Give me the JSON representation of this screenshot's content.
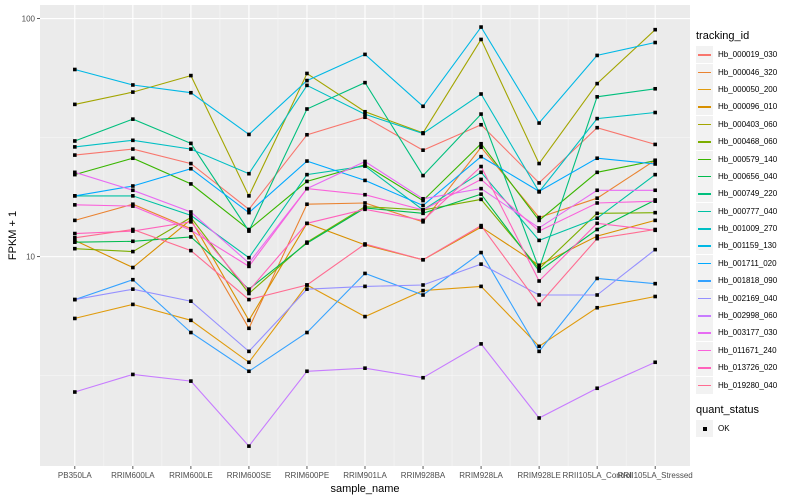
{
  "chart_data": {
    "type": "line",
    "title": "",
    "xlabel": "sample_name",
    "ylabel": "FPKM + 1",
    "yscale": "log10",
    "ylim": [
      1.32,
      114
    ],
    "yticks": [
      10,
      100
    ],
    "ytick_labels": [
      "10",
      "100"
    ],
    "grid": true,
    "legend_position": "right",
    "categories": [
      "PB350LA",
      "RRIM600LA",
      "RRIM600LE",
      "RRIM600SE",
      "RRIM600PE",
      "RRIM901LA",
      "RRIM928BA",
      "RRIM928LA",
      "RRIM928LE",
      "RRII105LA_Control",
      "RRII105LA_Stressed"
    ],
    "legend_title": "tracking_id",
    "shape_legend_title": "quant_status",
    "shape_legend_items": [
      "OK"
    ],
    "series": [
      {
        "name": "Hb_000019_030",
        "color": "#F8766D",
        "values": [
          26.7,
          28.3,
          24.6,
          15.8,
          32.5,
          38.5,
          28.0,
          35.8,
          20.4,
          34.8,
          29.6
        ]
      },
      {
        "name": "Hb_000046_320",
        "color": "#EA8331",
        "values": [
          14.2,
          16.6,
          13.1,
          5.0,
          16.6,
          16.8,
          14.0,
          28.8,
          14.6,
          17.6,
          25.4
        ]
      },
      {
        "name": "Hb_000050_200",
        "color": "#E09B0D",
        "values": [
          5.5,
          6.3,
          5.4,
          3.6,
          7.6,
          5.6,
          7.2,
          7.5,
          4.2,
          6.1,
          6.8
        ]
      },
      {
        "name": "Hb_000096_010",
        "color": "#D89000",
        "values": [
          11.7,
          9.0,
          14.3,
          5.4,
          13.8,
          11.2,
          9.7,
          13.3,
          9.2,
          12.2,
          14.2
        ]
      },
      {
        "name": "Hb_000403_060",
        "color": "#A3A500",
        "values": [
          43.6,
          49.1,
          57.6,
          18.0,
          58.8,
          40.6,
          33.1,
          81.7,
          24.6,
          53.3,
          89.8
        ]
      },
      {
        "name": "Hb_000468_060",
        "color": "#7CAE00",
        "values": [
          10.8,
          10.5,
          14.6,
          7.0,
          11.5,
          16.2,
          15.7,
          17.4,
          8.9,
          15.2,
          15.3
        ]
      },
      {
        "name": "Hb_000579_140",
        "color": "#39B600",
        "values": [
          22.1,
          25.9,
          20.2,
          13.0,
          20.7,
          24.3,
          17.2,
          29.8,
          14.2,
          22.6,
          25.3
        ]
      },
      {
        "name": "Hb_000656_040",
        "color": "#00BB4E",
        "values": [
          11.5,
          11.6,
          12.1,
          7.3,
          11.4,
          16.0,
          15.2,
          18.3,
          8.7,
          13.0,
          17.3
        ]
      },
      {
        "name": "Hb_000749_220",
        "color": "#00BF7D",
        "values": [
          30.6,
          37.8,
          29.9,
          12.8,
          41.7,
          53.8,
          21.9,
          39.7,
          8.9,
          46.9,
          50.7
        ]
      },
      {
        "name": "Hb_000777_040",
        "color": "#00C1A3",
        "values": [
          18.0,
          18.0,
          14.9,
          9.9,
          22.1,
          24.0,
          15.7,
          22.6,
          11.7,
          14.5,
          22.1
        ]
      },
      {
        "name": "Hb_001009_270",
        "color": "#00BFC4",
        "values": [
          28.9,
          30.8,
          28.3,
          22.3,
          52.4,
          39.6,
          32.9,
          48.2,
          18.7,
          38.0,
          40.3
        ]
      },
      {
        "name": "Hb_001159_130",
        "color": "#00B8E5",
        "values": [
          61.1,
          52.6,
          48.8,
          32.6,
          54.9,
          70.7,
          42.8,
          92.1,
          36.4,
          70.0,
          79.3
        ]
      },
      {
        "name": "Hb_001711_020",
        "color": "#00A9FF",
        "values": [
          18.0,
          19.8,
          23.4,
          15.3,
          25.2,
          20.9,
          16.4,
          26.3,
          18.8,
          25.9,
          24.5
        ]
      },
      {
        "name": "Hb_001818_090",
        "color": "#35A2FF",
        "values": [
          6.6,
          8.0,
          4.8,
          3.3,
          4.8,
          8.5,
          6.9,
          10.4,
          4.0,
          8.1,
          7.7
        ]
      },
      {
        "name": "Hb_002169_040",
        "color": "#9590FF",
        "values": [
          6.6,
          7.3,
          6.5,
          4.0,
          7.3,
          7.5,
          7.6,
          9.3,
          6.9,
          6.9,
          10.7
        ]
      },
      {
        "name": "Hb_002998_060",
        "color": "#C77CFF",
        "values": [
          2.7,
          3.2,
          3.0,
          1.6,
          3.3,
          3.4,
          3.1,
          4.3,
          2.1,
          2.8,
          3.6
        ]
      },
      {
        "name": "Hb_003177_030",
        "color": "#E76BF3",
        "values": [
          22.6,
          19.0,
          15.4,
          9.4,
          19.3,
          25.1,
          17.5,
          19.3,
          13.2,
          19.0,
          19.0
        ]
      },
      {
        "name": "Hb_011671_240",
        "color": "#FA62DB",
        "values": [
          16.5,
          16.3,
          12.9,
          9.1,
          19.3,
          18.2,
          15.7,
          21.1,
          12.8,
          16.8,
          17.1
        ]
      },
      {
        "name": "Hb_013726_020",
        "color": "#FF62BC",
        "values": [
          12.5,
          12.8,
          14.0,
          7.2,
          13.8,
          15.8,
          14.2,
          23.9,
          7.9,
          13.8,
          12.9
        ]
      },
      {
        "name": "Hb_019280_040",
        "color": "#FF6C91",
        "values": [
          12.0,
          13.0,
          10.6,
          6.6,
          7.6,
          11.3,
          9.7,
          13.5,
          6.3,
          11.9,
          13.0
        ]
      }
    ]
  }
}
